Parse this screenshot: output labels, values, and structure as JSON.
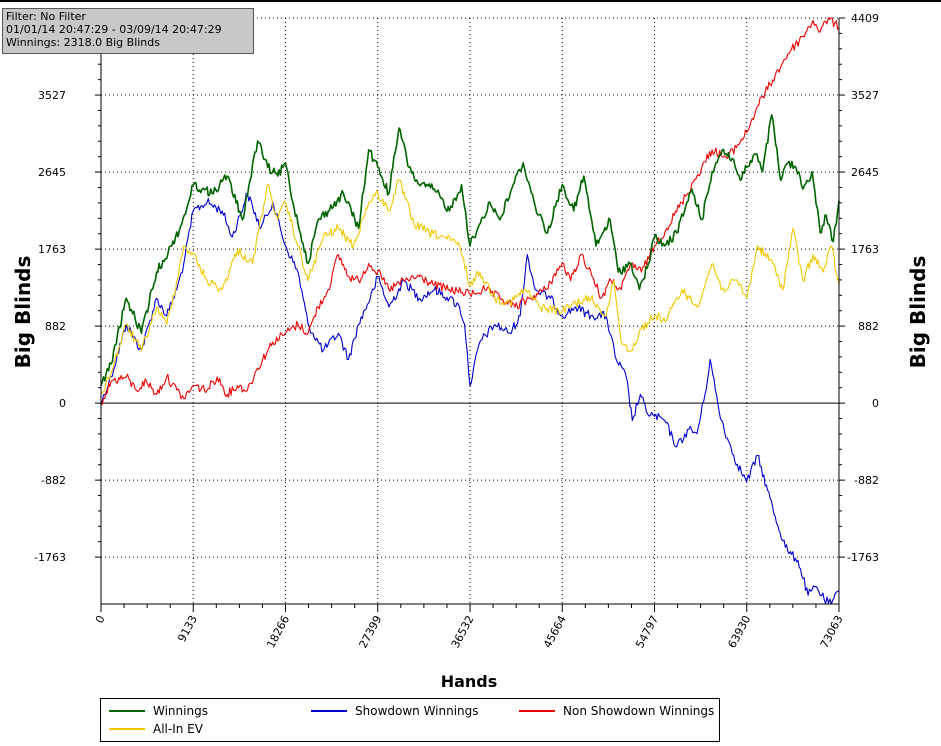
{
  "info_box": {
    "filter": "Filter: No Filter",
    "dates": "01/01/14 20:47:29 - 03/09/14 20:47:29",
    "winnings": "Winnings: 2318.0 Big Blinds"
  },
  "chart_data": {
    "type": "line",
    "xlabel": "Hands",
    "ylabel": "Big Blinds",
    "xlim": [
      0,
      73063
    ],
    "ylim": [
      -2300,
      4409
    ],
    "x_ticks": [
      0,
      9133,
      18266,
      27399,
      36532,
      45664,
      54797,
      63930,
      73063
    ],
    "y_ticks": [
      -1763,
      -882,
      0,
      882,
      1763,
      2645,
      3527,
      4409
    ],
    "grid": true,
    "legend_position": "bottom",
    "colors": {
      "winnings": "#006400",
      "showdown": "#0000cc",
      "non_showdown": "#ee0000",
      "all_in_ev": "#f0c800"
    },
    "series": [
      {
        "name": "Winnings",
        "color": "#006400",
        "x": [
          0,
          1000,
          2500,
          4000,
          5500,
          7000,
          8000,
          9133,
          10000,
          11000,
          12500,
          14000,
          15500,
          16500,
          17500,
          18266,
          19000,
          20500,
          21500,
          22500,
          24000,
          25500,
          26500,
          27399,
          28500,
          29500,
          30500,
          31500,
          33000,
          34500,
          35700,
          36532,
          37300,
          38500,
          39500,
          40800,
          41800,
          43000,
          44200,
          45664,
          46800,
          47800,
          49000,
          50400,
          51200,
          52500,
          53300,
          54200,
          54797,
          55800,
          57000,
          58500,
          59500,
          60500,
          61500,
          62500,
          63300,
          63930,
          64800,
          65500,
          66400,
          67300,
          68000,
          68800,
          69500,
          70400,
          71200,
          71800,
          72500,
          73063
        ],
        "values": [
          200,
          450,
          1200,
          800,
          1500,
          1800,
          2050,
          2500,
          2450,
          2400,
          2600,
          2100,
          3000,
          2700,
          2600,
          2750,
          2300,
          1600,
          2100,
          2200,
          2400,
          2000,
          2900,
          2700,
          2400,
          3150,
          2700,
          2500,
          2450,
          2200,
          2500,
          1800,
          2000,
          2300,
          2100,
          2500,
          2750,
          2250,
          1950,
          2500,
          2200,
          2600,
          1800,
          2100,
          1500,
          1600,
          1300,
          1600,
          1900,
          1800,
          1950,
          2450,
          2100,
          2650,
          2900,
          2800,
          2550,
          2700,
          2850,
          2650,
          3300,
          2550,
          2750,
          2700,
          2450,
          2650,
          1950,
          2150,
          1850,
          2318
        ]
      },
      {
        "name": "Showdown Winnings",
        "color": "#0000cc",
        "x": [
          0,
          1000,
          2500,
          4000,
          5500,
          6500,
          7500,
          8200,
          9133,
          10500,
          12000,
          13000,
          14500,
          15800,
          17000,
          18266,
          19500,
          20500,
          22000,
          23500,
          24500,
          25500,
          27000,
          27399,
          28500,
          30000,
          31500,
          33000,
          34500,
          35500,
          36000,
          36532,
          37500,
          39000,
          40500,
          41500,
          42200,
          43000,
          44500,
          45664,
          47000,
          48500,
          50000,
          51000,
          52000,
          52600,
          53400,
          54000,
          54797,
          55800,
          57000,
          58200,
          59000,
          59800,
          60300,
          61200,
          62000,
          63000,
          63930,
          65000,
          66000,
          67000,
          68000,
          69000,
          70000,
          70800,
          71600,
          72300,
          73063
        ],
        "values": [
          0,
          300,
          900,
          600,
          1200,
          1000,
          1300,
          1600,
          2200,
          2300,
          2200,
          1900,
          2400,
          2000,
          2300,
          1800,
          1500,
          900,
          600,
          800,
          500,
          900,
          1300,
          1450,
          1100,
          1400,
          1200,
          1300,
          1200,
          1100,
          900,
          200,
          700,
          900,
          800,
          1000,
          1700,
          1300,
          1200,
          1000,
          1100,
          1000,
          1000,
          500,
          300,
          -200,
          100,
          -100,
          -150,
          -200,
          -500,
          -300,
          -350,
          100,
          500,
          -100,
          -400,
          -700,
          -900,
          -600,
          -1000,
          -1400,
          -1700,
          -1800,
          -2200,
          -2100,
          -2250,
          -2300,
          -2150
        ]
      },
      {
        "name": "Non Showdown Winnings",
        "color": "#ee0000",
        "x": [
          0,
          1000,
          2500,
          3500,
          4500,
          5500,
          6500,
          7500,
          8200,
          9133,
          10500,
          11500,
          12500,
          13500,
          14500,
          15500,
          17000,
          18266,
          19500,
          20500,
          21500,
          22500,
          23500,
          24500,
          25500,
          26500,
          27399,
          28500,
          30000,
          31500,
          33000,
          34500,
          36532,
          38000,
          39500,
          41000,
          42500,
          44000,
          45664,
          46500,
          47500,
          48500,
          49500,
          50500,
          51500,
          52500,
          53500,
          54797,
          56000,
          57500,
          59000,
          60500,
          62000,
          63930,
          65000,
          66500,
          68000,
          69500,
          70500,
          71200,
          72000,
          73063
        ],
        "values": [
          0,
          250,
          300,
          150,
          250,
          100,
          300,
          150,
          50,
          200,
          150,
          300,
          100,
          200,
          150,
          400,
          700,
          800,
          900,
          800,
          1100,
          1300,
          1700,
          1450,
          1400,
          1600,
          1500,
          1300,
          1400,
          1450,
          1350,
          1300,
          1250,
          1300,
          1200,
          1100,
          1200,
          1300,
          1600,
          1400,
          1700,
          1500,
          1200,
          1400,
          1300,
          1600,
          1500,
          1800,
          2000,
          2300,
          2600,
          2900,
          2800,
          3100,
          3400,
          3700,
          4000,
          4200,
          4380,
          4250,
          4409,
          4300
        ]
      },
      {
        "name": "All-In EV",
        "color": "#f0c800",
        "x": [
          0,
          1000,
          2500,
          4000,
          5500,
          6500,
          7500,
          8200,
          9133,
          10500,
          12000,
          13500,
          15000,
          16500,
          17500,
          18266,
          19500,
          20500,
          22000,
          23500,
          25000,
          26500,
          27399,
          28500,
          29500,
          31000,
          32500,
          34000,
          35500,
          36532,
          37500,
          39000,
          40500,
          42000,
          43500,
          45664,
          47000,
          48500,
          50000,
          50800,
          51500,
          52500,
          53500,
          54797,
          56000,
          57500,
          59000,
          60500,
          61500,
          63000,
          63930,
          65000,
          66500,
          67500,
          68500,
          69500,
          70500,
          71500,
          72300,
          73063
        ],
        "values": [
          100,
          350,
          900,
          600,
          1100,
          900,
          1400,
          1800,
          1700,
          1400,
          1300,
          1750,
          1600,
          2500,
          2100,
          2300,
          1800,
          1400,
          1900,
          2000,
          1800,
          2300,
          2400,
          2200,
          2550,
          2050,
          1950,
          1900,
          1800,
          1350,
          1500,
          1200,
          1150,
          1300,
          1100,
          1050,
          1150,
          1200,
          1000,
          1400,
          700,
          600,
          850,
          1000,
          950,
          1300,
          1100,
          1600,
          1300,
          1400,
          1200,
          1800,
          1600,
          1300,
          2000,
          1400,
          1700,
          1500,
          1800,
          1350
        ]
      }
    ]
  },
  "legend": {
    "items": [
      {
        "label": "Winnings",
        "color": "#006400"
      },
      {
        "label": "Showdown Winnings",
        "color": "#0000cc"
      },
      {
        "label": "Non Showdown Winnings",
        "color": "#ee0000"
      },
      {
        "label": "All-In EV",
        "color": "#f0c800"
      }
    ]
  }
}
